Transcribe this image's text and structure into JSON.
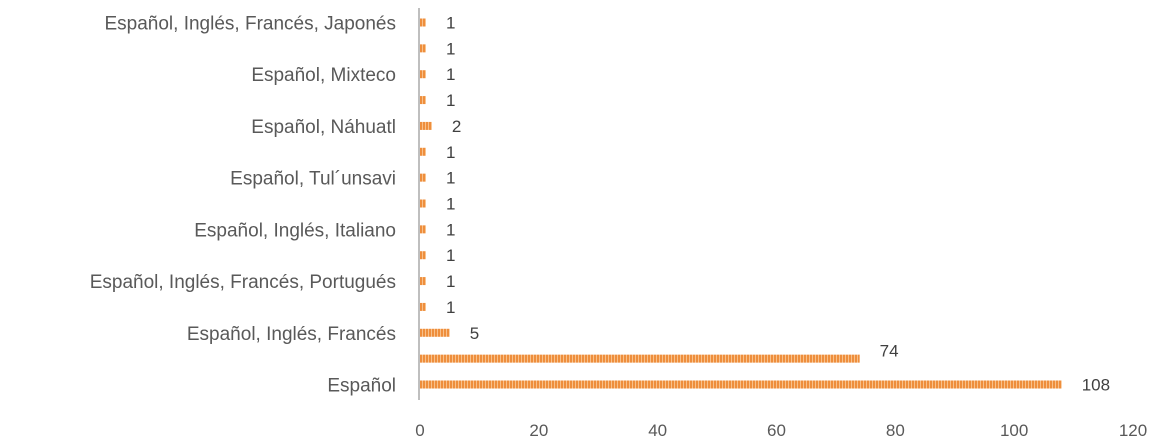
{
  "chart_data": {
    "type": "bar",
    "orientation": "horizontal",
    "categories": [
      "Español",
      "",
      "Español, Inglés, Francés",
      "",
      "Español, Inglés, Francés, Portugués",
      "",
      "Español, Inglés, Italiano",
      "",
      "Español, Tul´unsavi",
      "",
      "Español, Náhuatl",
      "",
      "Español, Mixteco",
      "",
      "Español, Inglés, Francés, Japonés"
    ],
    "values": [
      108,
      74,
      5,
      1,
      1,
      1,
      1,
      1,
      1,
      1,
      2,
      1,
      1,
      1,
      1
    ],
    "data_labels": [
      "108",
      "74",
      "5",
      "1",
      "1",
      "1",
      "1",
      "1",
      "1",
      "1",
      "2",
      "1",
      "1",
      "1",
      "1"
    ],
    "x_ticks": [
      "0",
      "20",
      "40",
      "60",
      "80",
      "100",
      "120"
    ],
    "xlim": [
      0,
      120
    ],
    "bar_color": "#F4A460",
    "axis_color": "#BFBFBF",
    "grid": false,
    "legend": "none"
  }
}
